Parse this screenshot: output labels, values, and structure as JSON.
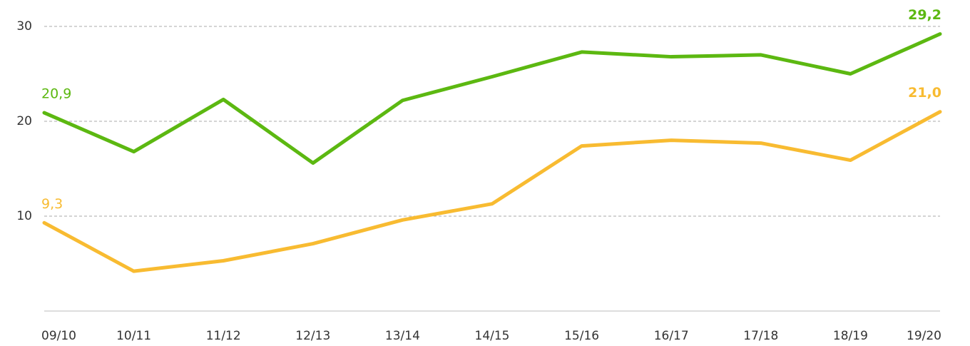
{
  "chart_data": {
    "type": "line",
    "categories": [
      "09/10",
      "10/11",
      "11/12",
      "12/13",
      "13/14",
      "14/15",
      "15/16",
      "16/17",
      "17/18",
      "18/19",
      "19/20"
    ],
    "series": [
      {
        "color": "#5cb811",
        "values": [
          20.9,
          16.8,
          22.3,
          15.6,
          22.2,
          24.7,
          27.3,
          26.8,
          27.0,
          25.0,
          29.2
        ],
        "value_labels": [
          "20,9",
          null,
          null,
          null,
          null,
          null,
          null,
          null,
          null,
          null,
          "29,2"
        ]
      },
      {
        "color": "#f8bb31",
        "values": [
          9.3,
          4.2,
          5.3,
          7.1,
          9.6,
          11.3,
          17.4,
          18.0,
          17.7,
          15.9,
          21.0
        ],
        "value_labels": [
          "9,3",
          null,
          null,
          null,
          null,
          null,
          null,
          null,
          null,
          null,
          "21,0"
        ]
      }
    ],
    "ylim": [
      0,
      32
    ],
    "yticks": [
      10,
      20,
      30
    ],
    "grid": true
  }
}
